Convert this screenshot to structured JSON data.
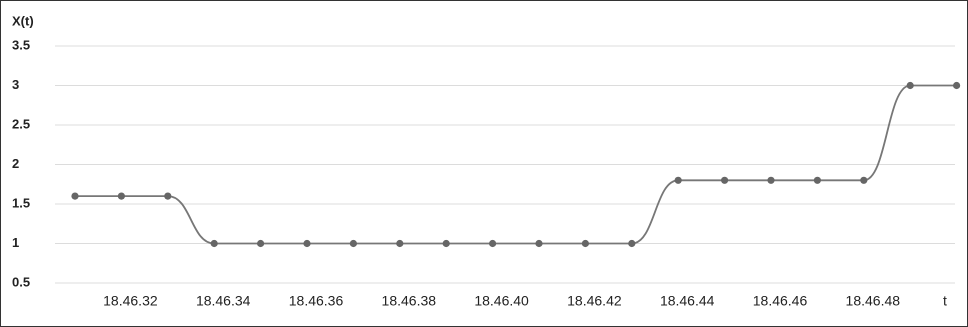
{
  "chart_data": {
    "type": "line",
    "y_axis_label": "X(t)",
    "x_axis_label": "t",
    "categories": [
      null,
      "18.46.32",
      null,
      "18.46.34",
      null,
      "18.46.36",
      null,
      "18.46.38",
      null,
      "18.46.40",
      null,
      "18.46.42",
      null,
      "18.46.44",
      null,
      "18.46.46",
      null,
      "18.46.48",
      null,
      null
    ],
    "series": [
      {
        "name": "X(t)",
        "color": "#777777",
        "values": [
          1.6,
          1.6,
          1.6,
          1,
          1,
          1,
          1,
          1,
          1,
          1,
          1,
          1,
          1,
          1.8,
          1.8,
          1.8,
          1.8,
          1.8,
          3,
          3
        ]
      }
    ],
    "ylim": [
      0.5,
      3.5
    ],
    "yticks": [
      0.5,
      1,
      1.5,
      2,
      2.5,
      3,
      3.5
    ],
    "grid": true
  }
}
